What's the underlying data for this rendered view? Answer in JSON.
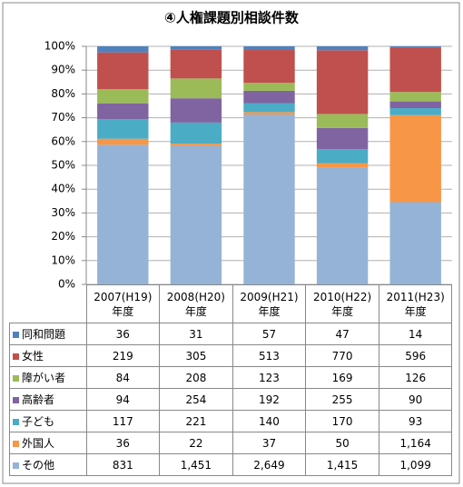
{
  "chart_data": {
    "type": "bar",
    "stacking": "percent",
    "title": "④人権課題別相談件数",
    "categories": [
      "2007(H19)\n年度",
      "2008(H20)\n年度",
      "2009(H21)\n年度",
      "2010(H22)\n年度",
      "2011(H23)\n年度"
    ],
    "series": [
      {
        "name": "同和問題",
        "color": "#4f81bd",
        "values": [
          36,
          31,
          57,
          47,
          14
        ],
        "value_labels": [
          "36",
          "31",
          "57",
          "47",
          "14"
        ]
      },
      {
        "name": "女性",
        "color": "#c0504d",
        "values": [
          219,
          305,
          513,
          770,
          596
        ],
        "value_labels": [
          "219",
          "305",
          "513",
          "770",
          "596"
        ]
      },
      {
        "name": "障がい者",
        "color": "#9bbb59",
        "values": [
          84,
          208,
          123,
          169,
          126
        ],
        "value_labels": [
          "84",
          "208",
          "123",
          "169",
          "126"
        ]
      },
      {
        "name": "高齢者",
        "color": "#8064a2",
        "values": [
          94,
          254,
          192,
          255,
          90
        ],
        "value_labels": [
          "94",
          "254",
          "192",
          "255",
          "90"
        ]
      },
      {
        "name": "子ども",
        "color": "#4bacc6",
        "values": [
          117,
          221,
          140,
          170,
          93
        ],
        "value_labels": [
          "117",
          "221",
          "140",
          "170",
          "93"
        ]
      },
      {
        "name": "外国人",
        "color": "#f79646",
        "values": [
          36,
          22,
          37,
          50,
          1164
        ],
        "value_labels": [
          "36",
          "22",
          "37",
          "50",
          "1,164"
        ]
      },
      {
        "name": "その他",
        "color": "#95b3d7",
        "values": [
          831,
          1451,
          2649,
          1415,
          1099
        ],
        "value_labels": [
          "831",
          "1,451",
          "2,649",
          "1,415",
          "1,099"
        ]
      }
    ],
    "ylim": [
      0,
      100
    ],
    "yticks": [
      {
        "value": 0,
        "label": "0%"
      },
      {
        "value": 10,
        "label": "10%"
      },
      {
        "value": 20,
        "label": "20%"
      },
      {
        "value": 30,
        "label": "30%"
      },
      {
        "value": 40,
        "label": "40%"
      },
      {
        "value": 50,
        "label": "50%"
      },
      {
        "value": 60,
        "label": "60%"
      },
      {
        "value": 70,
        "label": "70%"
      },
      {
        "value": 80,
        "label": "80%"
      },
      {
        "value": 90,
        "label": "90%"
      },
      {
        "value": 100,
        "label": "100%"
      }
    ],
    "grid": true
  }
}
